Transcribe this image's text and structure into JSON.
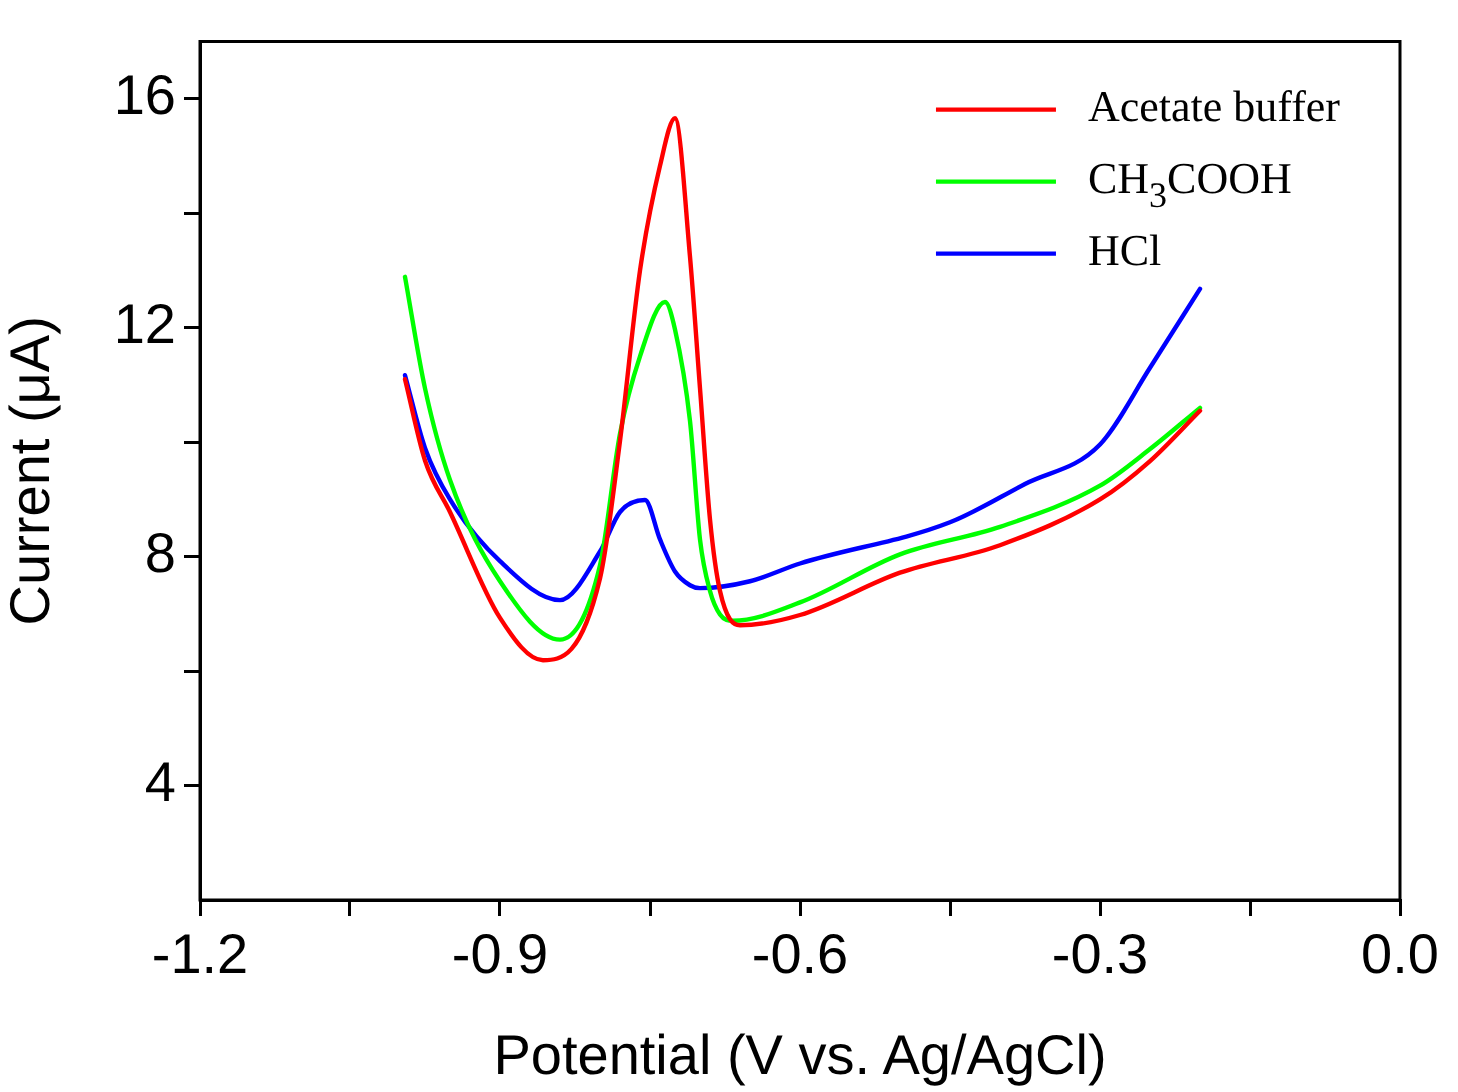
{
  "chart_data": {
    "type": "line",
    "xlabel": "Potential (V vs. Ag/AgCl)",
    "ylabel": "Current (μA)",
    "xlim": [
      -1.2,
      0
    ],
    "ylim": [
      2,
      17
    ],
    "xticks": [
      -1.2,
      {
        "value": -1.05,
        "label": null
      },
      -0.9,
      {
        "value": -0.75,
        "label": null
      },
      -0.6,
      {
        "value": -0.45,
        "label": null
      },
      -0.3,
      {
        "value": -0.15,
        "label": null
      },
      {
        "value": 0,
        "label": "0.0"
      }
    ],
    "yticks": [
      4,
      {
        "value": 6,
        "label": null
      },
      8,
      {
        "value": 10,
        "label": null
      },
      12,
      {
        "value": 14,
        "label": null
      },
      16
    ],
    "grid": false,
    "legend": "top right",
    "marker": "none",
    "line_style": "solid",
    "series": [
      {
        "name": "Acetate buffer",
        "color": "#ff0000",
        "x": [
          -0.995,
          -0.975,
          -0.95,
          -0.9,
          -0.857,
          -0.8,
          -0.78,
          -0.76,
          -0.74,
          -0.725,
          -0.71,
          -0.7,
          -0.69,
          -0.68,
          -0.66,
          -0.6,
          -0.5,
          -0.4,
          -0.3,
          -0.25,
          -0.2
        ],
        "values": [
          11.1,
          9.68,
          8.78,
          6.93,
          6.19,
          7.62,
          10.02,
          13.0,
          14.83,
          15.66,
          13.24,
          10.94,
          8.65,
          7.4,
          6.8,
          6.98,
          7.72,
          8.2,
          9.0,
          9.67,
          10.55
        ]
      },
      {
        "name": "CH$_{3}$COOH",
        "color": "#00ff00",
        "x": [
          -0.995,
          -0.975,
          -0.95,
          -0.9,
          -0.84,
          -0.8,
          -0.78,
          -0.76,
          -0.735,
          -0.725,
          -0.71,
          -0.7,
          -0.69,
          -0.68,
          -0.667,
          -0.6,
          -0.5,
          -0.4,
          -0.3,
          -0.25,
          -0.2
        ],
        "values": [
          12.89,
          10.94,
          9.34,
          7.57,
          6.55,
          7.85,
          10.15,
          11.5,
          12.45,
          11.97,
          10.37,
          8.3,
          7.4,
          6.99,
          6.88,
          7.2,
          8.04,
          8.52,
          9.24,
          9.88,
          10.6
        ]
      },
      {
        "name": "HCl",
        "color": "#0000ff",
        "x": [
          -0.995,
          -0.975,
          -0.95,
          -0.9,
          -0.84,
          -0.8,
          -0.78,
          -0.755,
          -0.74,
          -0.725,
          -0.71,
          -0.7,
          -0.65,
          -0.6,
          -0.45,
          -0.375,
          -0.3,
          -0.25,
          -0.2
        ],
        "values": [
          11.17,
          9.9,
          9.0,
          7.92,
          7.24,
          8.09,
          8.78,
          8.99,
          8.3,
          7.74,
          7.5,
          7.45,
          7.57,
          7.88,
          8.6,
          9.27,
          9.96,
          11.3,
          12.68
        ]
      }
    ]
  }
}
